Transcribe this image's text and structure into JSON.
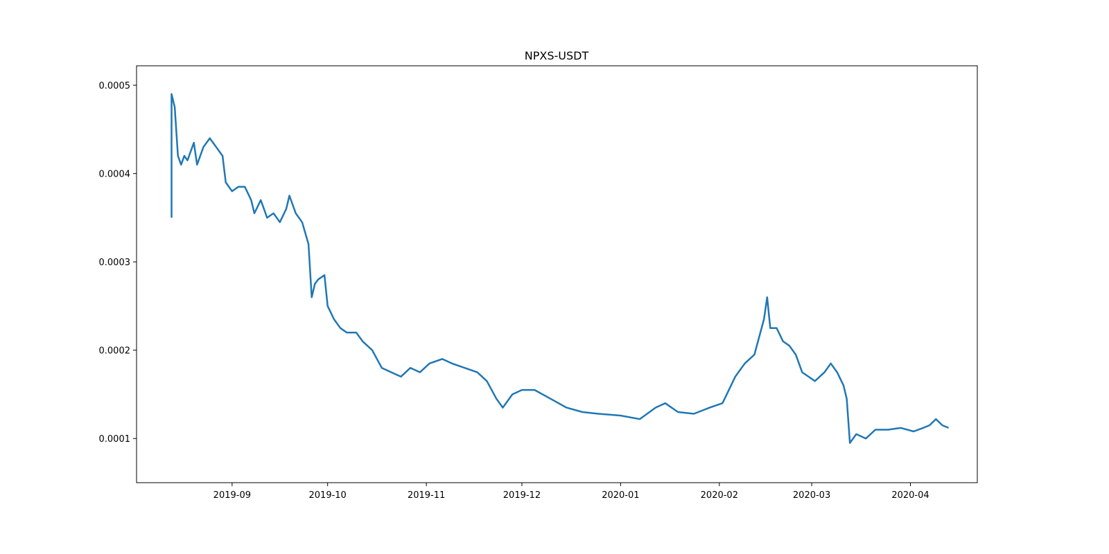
{
  "chart_data": {
    "type": "line",
    "title": "NPXS-USDT",
    "xlabel": "",
    "ylabel": "",
    "x_axis_type": "date",
    "xlim": [
      "2019-08-02",
      "2020-04-22"
    ],
    "ylim": [
      5e-05,
      0.000522
    ],
    "x_ticks": [
      "2019-09",
      "2019-10",
      "2019-11",
      "2019-12",
      "2020-01",
      "2020-02",
      "2020-03",
      "2020-04"
    ],
    "y_ticks": [
      "0.0001",
      "0.0002",
      "0.0003",
      "0.0004",
      "0.0005"
    ],
    "grid": false,
    "legend": "none",
    "line_color": "#1f77b4",
    "series": [
      {
        "x": [
          "2019-08-13",
          "2019-08-13",
          "2019-08-14",
          "2019-08-15",
          "2019-08-16",
          "2019-08-17",
          "2019-08-18",
          "2019-08-19",
          "2019-08-20",
          "2019-08-21",
          "2019-08-23",
          "2019-08-25",
          "2019-08-26",
          "2019-08-27",
          "2019-08-29",
          "2019-08-30",
          "2019-09-01",
          "2019-09-03",
          "2019-09-05",
          "2019-09-07",
          "2019-09-08",
          "2019-09-10",
          "2019-09-12",
          "2019-09-14",
          "2019-09-16",
          "2019-09-18",
          "2019-09-19",
          "2019-09-21",
          "2019-09-23",
          "2019-09-25",
          "2019-09-26",
          "2019-09-27",
          "2019-09-28",
          "2019-09-30",
          "2019-10-01",
          "2019-10-03",
          "2019-10-05",
          "2019-10-07",
          "2019-10-10",
          "2019-10-12",
          "2019-10-15",
          "2019-10-18",
          "2019-10-21",
          "2019-10-24",
          "2019-10-27",
          "2019-10-30",
          "2019-11-02",
          "2019-11-06",
          "2019-11-09",
          "2019-11-13",
          "2019-11-17",
          "2019-11-20",
          "2019-11-23",
          "2019-11-25",
          "2019-11-28",
          "2019-12-01",
          "2019-12-05",
          "2019-12-10",
          "2019-12-15",
          "2019-12-20",
          "2019-12-25",
          "2020-01-01",
          "2020-01-07",
          "2020-01-12",
          "2020-01-15",
          "2020-01-19",
          "2020-01-24",
          "2020-01-29",
          "2020-02-02",
          "2020-02-06",
          "2020-02-09",
          "2020-02-12",
          "2020-02-15",
          "2020-02-16",
          "2020-02-17",
          "2020-02-19",
          "2020-02-21",
          "2020-02-23",
          "2020-02-25",
          "2020-02-27",
          "2020-02-29",
          "2020-03-02",
          "2020-03-05",
          "2020-03-07",
          "2020-03-09",
          "2020-03-11",
          "2020-03-12",
          "2020-03-13",
          "2020-03-15",
          "2020-03-18",
          "2020-03-21",
          "2020-03-25",
          "2020-03-29",
          "2020-04-02",
          "2020-04-05",
          "2020-04-07",
          "2020-04-09",
          "2020-04-11",
          "2020-04-13"
        ],
        "values": [
          0.00035,
          0.00049,
          0.000475,
          0.00042,
          0.00041,
          0.00042,
          0.000415,
          0.000425,
          0.000435,
          0.00041,
          0.00043,
          0.00044,
          0.000435,
          0.00043,
          0.00042,
          0.00039,
          0.00038,
          0.000385,
          0.000385,
          0.00037,
          0.000355,
          0.00037,
          0.00035,
          0.000355,
          0.000345,
          0.00036,
          0.000375,
          0.000355,
          0.000345,
          0.00032,
          0.00026,
          0.000275,
          0.00028,
          0.000285,
          0.00025,
          0.000235,
          0.000225,
          0.00022,
          0.00022,
          0.00021,
          0.0002,
          0.00018,
          0.000175,
          0.00017,
          0.00018,
          0.000175,
          0.000185,
          0.00019,
          0.000185,
          0.00018,
          0.000175,
          0.000165,
          0.000145,
          0.000135,
          0.00015,
          0.000155,
          0.000155,
          0.000145,
          0.000135,
          0.00013,
          0.000128,
          0.000126,
          0.000122,
          0.000135,
          0.00014,
          0.00013,
          0.000128,
          0.000135,
          0.00014,
          0.00017,
          0.000185,
          0.000195,
          0.000235,
          0.00026,
          0.000225,
          0.000225,
          0.00021,
          0.000205,
          0.000195,
          0.000175,
          0.00017,
          0.000165,
          0.000175,
          0.000185,
          0.000175,
          0.00016,
          0.000145,
          9.5e-05,
          0.000105,
          0.0001,
          0.00011,
          0.00011,
          0.000112,
          0.000108,
          0.000112,
          0.000115,
          0.000122,
          0.000115,
          0.000112
        ]
      }
    ]
  }
}
